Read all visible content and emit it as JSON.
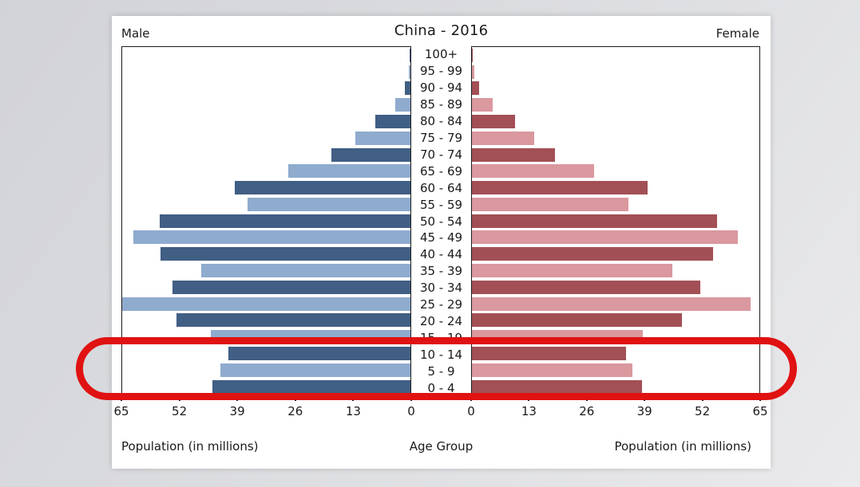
{
  "figure_background": "#ffffff",
  "page_background": {
    "from": "#d2d3d7",
    "to": "#eaeaec"
  },
  "captions": {
    "left": "Population (in millions)",
    "center": "Age Group",
    "right": "Population (in millions)"
  },
  "chart_data": {
    "type": "bar",
    "subtype": "population-pyramid",
    "title": "China - 2016",
    "left_header": "Male",
    "right_header": "Female",
    "xlabel": "Population (in millions)",
    "center_axis_label": "Age Group",
    "units": "millions",
    "xlim": [
      0,
      65
    ],
    "x_ticks_left": [
      "65",
      "52",
      "39",
      "26",
      "13",
      "0"
    ],
    "x_ticks_right": [
      "0",
      "13",
      "26",
      "39",
      "52",
      "65"
    ],
    "grid": false,
    "age_groups": [
      "100+",
      "95 - 99",
      "90 - 94",
      "85 - 89",
      "80 - 84",
      "75 - 79",
      "70 - 74",
      "65 - 69",
      "60 - 64",
      "55 - 59",
      "50 - 54",
      "45 - 49",
      "40 - 44",
      "35 - 39",
      "30 - 34",
      "25 - 29",
      "20 - 24",
      "15 - 19",
      "10 - 14",
      "5 - 9",
      "0 - 4"
    ],
    "series": [
      {
        "name": "Male",
        "side": "left",
        "values": [
          0.1,
          0.3,
          1.3,
          3.4,
          7.9,
          12.5,
          17.9,
          27.6,
          39.6,
          36.7,
          56.6,
          62.5,
          56.4,
          47.1,
          53.7,
          65.0,
          52.8,
          45.1,
          41.0,
          42.8,
          44.6
        ]
      },
      {
        "name": "Female",
        "side": "right",
        "values": [
          0.1,
          0.5,
          1.6,
          4.7,
          9.7,
          14.1,
          18.8,
          27.6,
          39.7,
          35.4,
          55.4,
          60.1,
          54.5,
          45.4,
          51.6,
          63.0,
          47.5,
          38.6,
          34.8,
          36.3,
          38.4
        ]
      }
    ],
    "colors": {
      "male_dark": "#415e84",
      "male_light": "#8fabce",
      "female_dark": "#a25056",
      "female_light": "#da989f"
    }
  },
  "annotation": {
    "shape": "red-oval",
    "color": "#e01212",
    "highlighted_age_groups": [
      "10 - 14",
      "5 - 9",
      "0 - 4"
    ]
  }
}
